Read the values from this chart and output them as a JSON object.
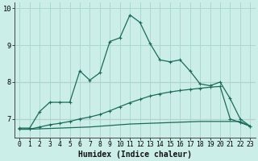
{
  "title": "",
  "xlabel": "Humidex (Indice chaleur)",
  "bg_color": "#cceee8",
  "grid_color": "#aad8d0",
  "line_color": "#1a6b5a",
  "hline_color": "#d09090",
  "xmin": -0.5,
  "xmax": 23.5,
  "ymin": 6.5,
  "ymax": 10.15,
  "yticks": [
    7,
    8,
    9,
    10
  ],
  "xticks": [
    0,
    1,
    2,
    3,
    4,
    5,
    6,
    7,
    8,
    9,
    10,
    11,
    12,
    13,
    14,
    15,
    16,
    17,
    18,
    19,
    20,
    21,
    22,
    23
  ],
  "hlines": [
    7.0,
    8.0
  ],
  "line1_x": [
    0,
    1,
    2,
    3,
    4,
    5,
    6,
    7,
    8,
    9,
    10,
    11,
    12,
    13,
    14,
    15,
    16,
    17,
    18,
    19,
    20,
    21,
    22,
    23
  ],
  "line1_y": [
    6.75,
    6.75,
    7.2,
    7.45,
    7.45,
    7.45,
    8.3,
    8.05,
    8.25,
    9.1,
    9.2,
    9.82,
    9.62,
    9.05,
    8.6,
    8.55,
    8.6,
    8.3,
    7.95,
    7.9,
    8.0,
    7.55,
    7.0,
    6.8
  ],
  "line2_x": [
    0,
    1,
    2,
    3,
    4,
    5,
    6,
    7,
    8,
    9,
    10,
    11,
    12,
    13,
    14,
    15,
    16,
    17,
    18,
    19,
    20,
    21,
    22,
    23
  ],
  "line2_y": [
    6.72,
    6.72,
    6.78,
    6.84,
    6.88,
    6.93,
    7.0,
    7.05,
    7.12,
    7.22,
    7.33,
    7.44,
    7.53,
    7.62,
    7.68,
    7.73,
    7.77,
    7.8,
    7.83,
    7.86,
    7.88,
    7.0,
    6.9,
    6.8
  ],
  "line3_x": [
    0,
    1,
    2,
    3,
    4,
    5,
    6,
    7,
    8,
    9,
    10,
    11,
    12,
    13,
    14,
    15,
    16,
    17,
    18,
    19,
    20,
    21,
    22,
    23
  ],
  "line3_y": [
    6.72,
    6.72,
    6.73,
    6.74,
    6.75,
    6.76,
    6.77,
    6.78,
    6.8,
    6.82,
    6.84,
    6.86,
    6.87,
    6.88,
    6.89,
    6.9,
    6.91,
    6.92,
    6.93,
    6.93,
    6.93,
    6.93,
    6.93,
    6.8
  ],
  "tick_fontsize": 5.8,
  "label_fontsize": 7.0
}
